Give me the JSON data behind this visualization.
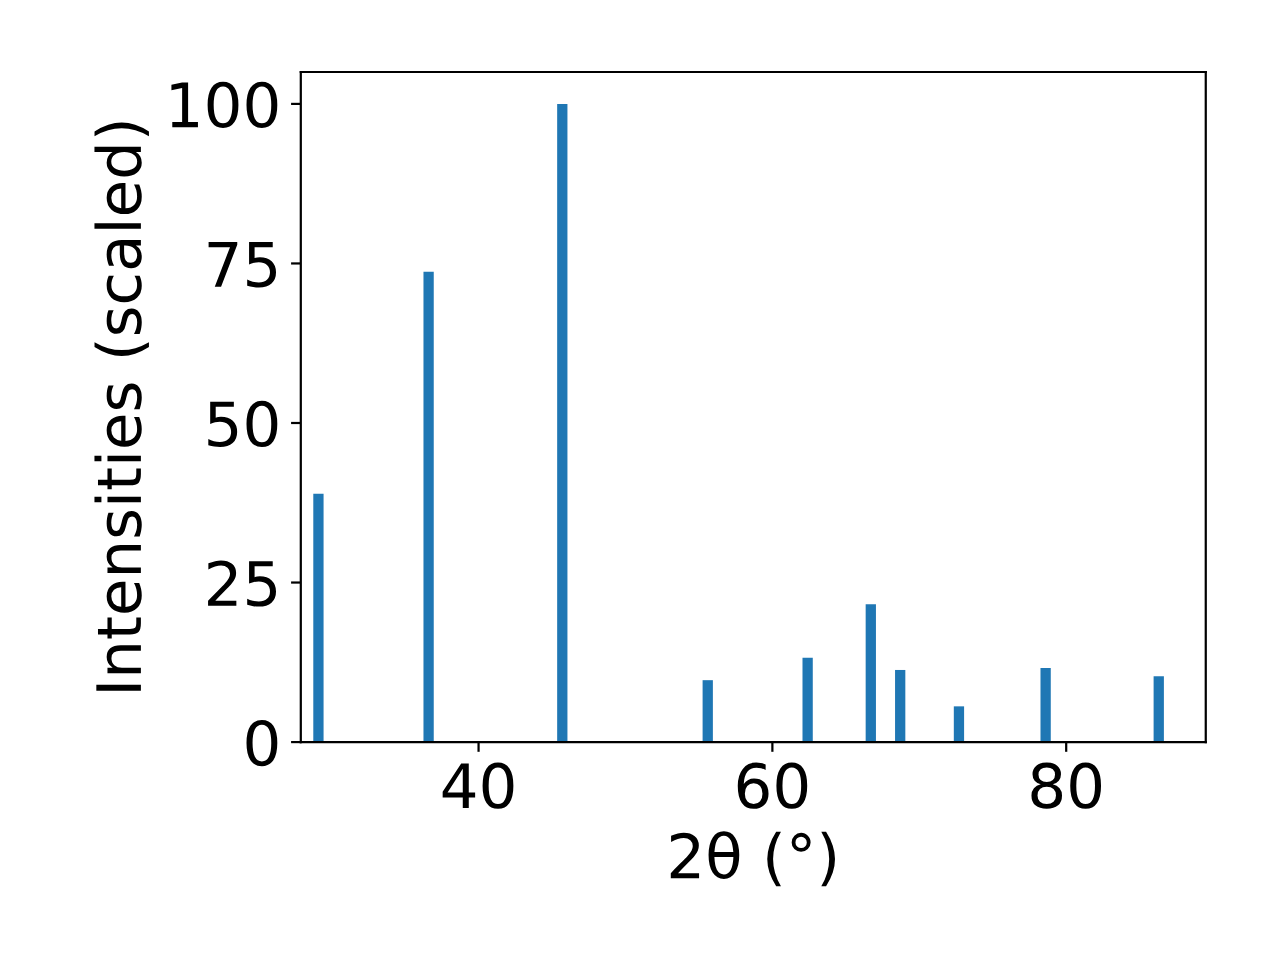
{
  "chart_data": {
    "type": "bar",
    "x": [
      29.1,
      36.6,
      45.7,
      55.6,
      62.4,
      66.7,
      68.7,
      72.7,
      78.6,
      86.3
    ],
    "values": [
      38.9,
      73.7,
      100,
      9.7,
      13.2,
      21.6,
      11.3,
      5.6,
      11.6,
      10.3
    ],
    "color": "#1f77b4",
    "xlabel": "2θ (°)",
    "ylabel": "Intensities (scaled)",
    "xlim": [
      27.9,
      89.5
    ],
    "ylim": [
      0,
      105
    ],
    "xticks": [
      40,
      60,
      80
    ],
    "yticks": [
      0,
      25,
      50,
      75,
      100
    ],
    "grid": false,
    "legend": false
  }
}
